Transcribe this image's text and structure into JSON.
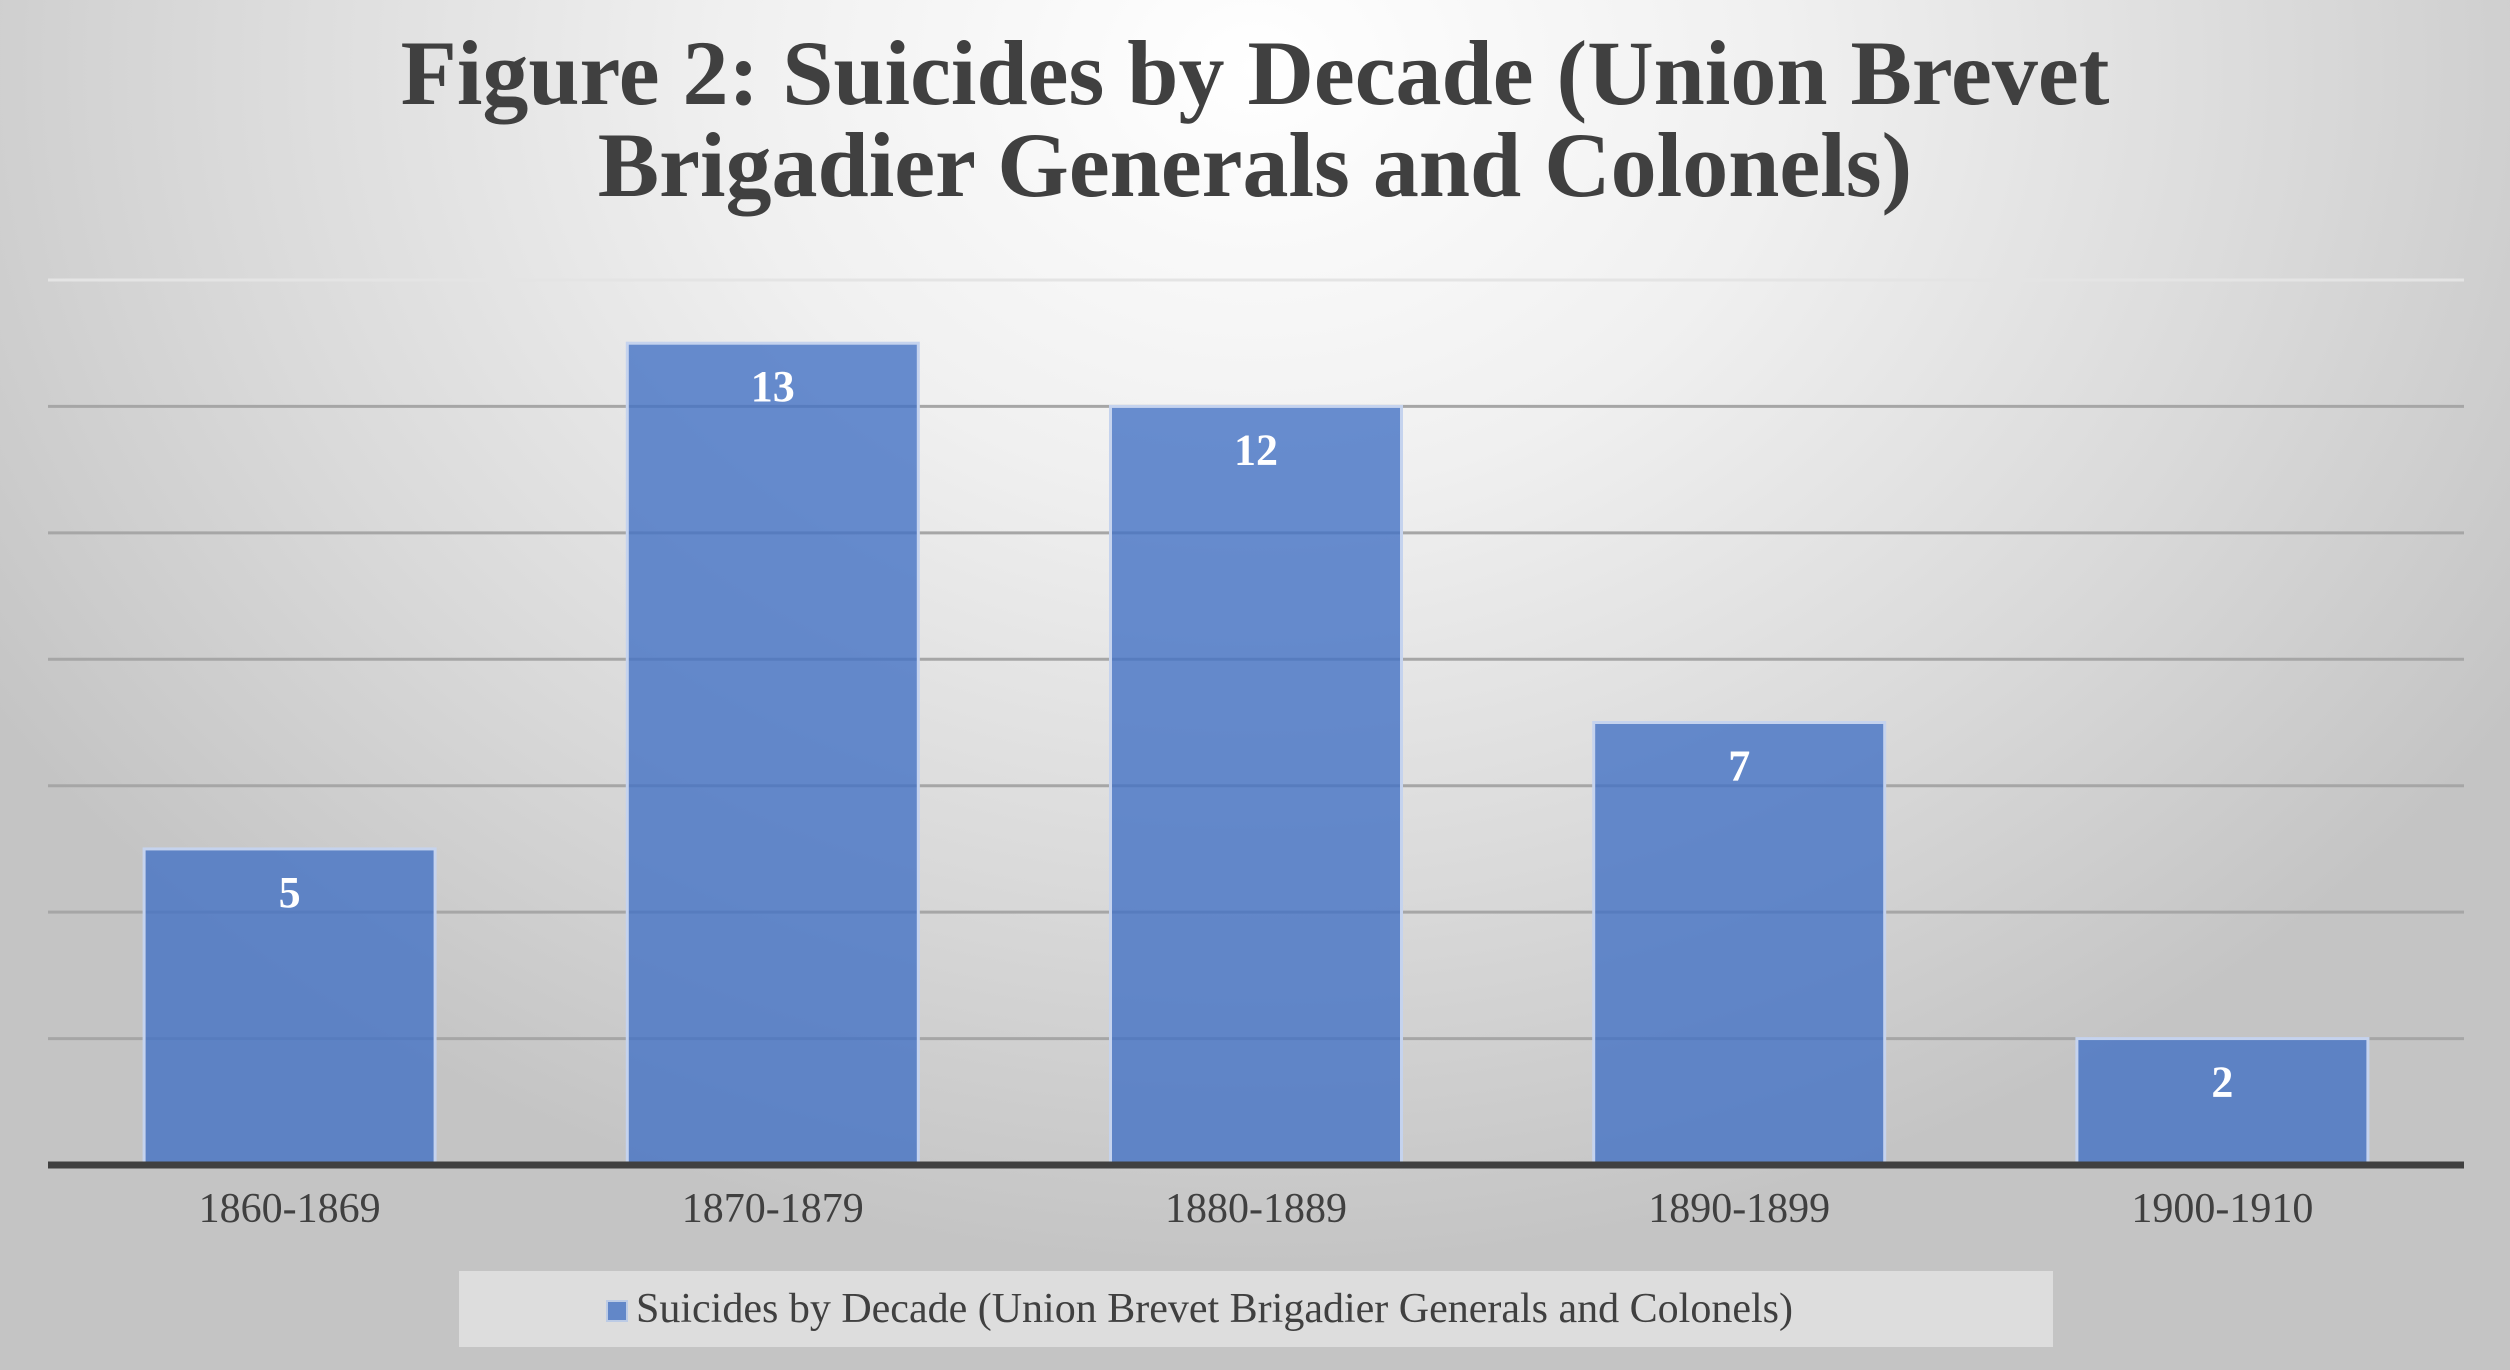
{
  "chart_data": {
    "type": "bar",
    "title_lines": [
      "Figure 2: Suicides by Decade (Union Brevet",
      "Brigadier Generals and Colonels)"
    ],
    "categories": [
      "1860-1869",
      "1870-1879",
      "1880-1889",
      "1890-1899",
      "1900-1910"
    ],
    "series": [
      {
        "name": "Suicides by Decade (Union Brevet Brigadier Generals and Colonels)",
        "values": [
          5,
          13,
          12,
          7,
          2
        ],
        "color": "#4472C4"
      }
    ],
    "ylim": [
      0,
      14
    ],
    "ytick_step": 2,
    "grid": true,
    "yaxis_labels_shown": false,
    "legend_position": "bottom",
    "xlabel": "",
    "ylabel": ""
  }
}
